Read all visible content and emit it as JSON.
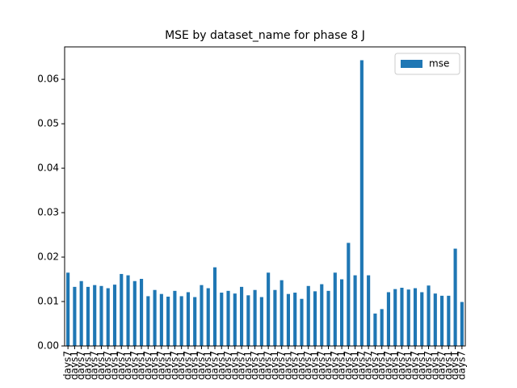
{
  "chart_data": {
    "type": "bar",
    "title": "MSE by dataset_name for phase 8 J",
    "categories": [
      "days7",
      "days1",
      "days7",
      "days1",
      "days7",
      "days1",
      "days7",
      "days1",
      "days7",
      "days1",
      "days7",
      "days1",
      "days7",
      "days1",
      "days7",
      "days1",
      "days7",
      "days1",
      "days7",
      "days1",
      "days7",
      "days1",
      "days7",
      "days1",
      "days7",
      "days1",
      "days7",
      "days1",
      "days7",
      "days1",
      "days7",
      "days1",
      "days7",
      "days1",
      "days7",
      "days1",
      "days7",
      "days1",
      "days7",
      "days1",
      "days7",
      "days1",
      "days7",
      "days1",
      "days7",
      "days7",
      "days7",
      "days1",
      "days7",
      "days1",
      "days7",
      "days1",
      "days7",
      "days1",
      "days7",
      "days1",
      "days7",
      "days1",
      "days1",
      "days7"
    ],
    "series": [
      {
        "name": "mse",
        "color": "#1f77b4",
        "values": [
          0.0165,
          0.0133,
          0.0146,
          0.0133,
          0.0137,
          0.0135,
          0.013,
          0.0138,
          0.0162,
          0.0159,
          0.0146,
          0.0151,
          0.0112,
          0.0126,
          0.0117,
          0.0111,
          0.0124,
          0.0112,
          0.0121,
          0.011,
          0.0137,
          0.013,
          0.0177,
          0.012,
          0.0124,
          0.0118,
          0.0133,
          0.0114,
          0.0126,
          0.011,
          0.0165,
          0.0126,
          0.0148,
          0.0117,
          0.012,
          0.0106,
          0.0135,
          0.0123,
          0.0139,
          0.0124,
          0.0165,
          0.015,
          0.0232,
          0.0159,
          0.0643,
          0.0159,
          0.0073,
          0.0083,
          0.0121,
          0.0128,
          0.0131,
          0.0127,
          0.013,
          0.0121,
          0.0136,
          0.0118,
          0.0113,
          0.0113,
          0.0219,
          0.0099
        ]
      }
    ],
    "ylim": [
      0,
      0.0673
    ],
    "yticks": [
      {
        "value": 0,
        "label": "0.00"
      },
      {
        "value": 0.01,
        "label": "0.01"
      },
      {
        "value": 0.02,
        "label": "0.02"
      },
      {
        "value": 0.03,
        "label": "0.03"
      },
      {
        "value": 0.04,
        "label": "0.04"
      },
      {
        "value": 0.05,
        "label": "0.05"
      },
      {
        "value": 0.06,
        "label": "0.06"
      }
    ],
    "legend": "upper right"
  }
}
